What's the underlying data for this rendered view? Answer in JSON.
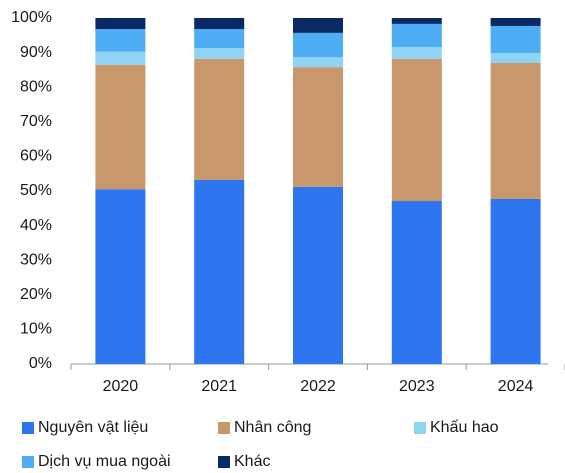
{
  "chart_data": {
    "type": "stacked_bar",
    "categories": [
      "2020",
      "2021",
      "2022",
      "2023",
      "2024"
    ],
    "series": [
      {
        "name": "Nguyên vật liệu",
        "color": "#2e75f0",
        "values": [
          50.5,
          53.2,
          51.2,
          47.1,
          47.7
        ]
      },
      {
        "name": "Nhân công",
        "color": "#c8976c",
        "values": [
          36,
          35,
          34.6,
          41.1,
          39.3
        ]
      },
      {
        "name": "Khấu hao",
        "color": "#8fd3f5",
        "values": [
          3.8,
          3.1,
          2.9,
          3.4,
          2.9
        ]
      },
      {
        "name": "Dịch vụ mua ngoài",
        "color": "#4daef5",
        "values": [
          6.5,
          5.5,
          7,
          6.7,
          7.8
        ]
      },
      {
        "name": "Khác",
        "color": "#0a2a66",
        "values": [
          3.2,
          3.2,
          4.3,
          1.7,
          2.3
        ]
      }
    ],
    "ylim": [
      0,
      100
    ],
    "yticks": [
      {
        "value": 0,
        "label": "0%"
      },
      {
        "value": 10,
        "label": "10%"
      },
      {
        "value": 20,
        "label": "20%"
      },
      {
        "value": 30,
        "label": "30%"
      },
      {
        "value": 40,
        "label": "40%"
      },
      {
        "value": 50,
        "label": "50%"
      },
      {
        "value": 60,
        "label": "60%"
      },
      {
        "value": 70,
        "label": "70%"
      },
      {
        "value": 80,
        "label": "80%"
      },
      {
        "value": 90,
        "label": "90%"
      },
      {
        "value": 100,
        "label": "100%"
      }
    ],
    "legend": "bottom"
  }
}
